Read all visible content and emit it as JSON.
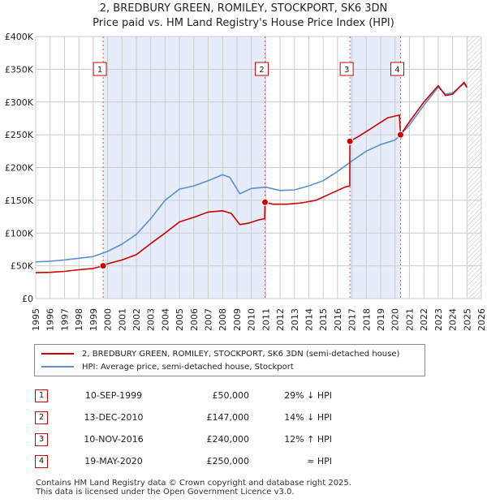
{
  "title_line1": "2, BREDBURY GREEN, ROMILEY, STOCKPORT, SK6 3DN",
  "title_line2": "Price paid vs. HM Land Registry's House Price Index (HPI)",
  "legend": {
    "property": "2, BREDBURY GREEN, ROMILEY, STOCKPORT, SK6 3DN (semi-detached house)",
    "hpi": "HPI: Average price, semi-detached house, Stockport"
  },
  "colors": {
    "property": "#cc0000",
    "hpi": "#5b8fd0",
    "band": "#e6ecfa",
    "grid": "#cccccc",
    "marker_border": "#cc0000"
  },
  "sales": [
    {
      "n": "1",
      "date": "10-SEP-1999",
      "price": "£50,000",
      "hpi": "29% ↓ HPI"
    },
    {
      "n": "2",
      "date": "13-DEC-2010",
      "price": "£147,000",
      "hpi": "14% ↓ HPI"
    },
    {
      "n": "3",
      "date": "10-NOV-2016",
      "price": "£240,000",
      "hpi": "12% ↑ HPI"
    },
    {
      "n": "4",
      "date": "19-MAY-2020",
      "price": "£250,000",
      "hpi": "≈ HPI"
    }
  ],
  "footer_line1": "Contains HM Land Registry data © Crown copyright and database right 2025.",
  "footer_line2": "This data is licensed under the Open Government Licence v3.0.",
  "chart_data": {
    "type": "line",
    "title": "2, BREDBURY GREEN, ROMILEY, STOCKPORT, SK6 3DN",
    "subtitle": "Price paid vs. HM Land Registry's House Price Index (HPI)",
    "xlim": [
      1995,
      2026
    ],
    "ylim": [
      0,
      400000
    ],
    "x_ticks": [
      1995,
      1996,
      1997,
      1998,
      1999,
      2000,
      2001,
      2002,
      2003,
      2004,
      2005,
      2006,
      2007,
      2008,
      2009,
      2010,
      2011,
      2012,
      2013,
      2014,
      2015,
      2016,
      2017,
      2018,
      2019,
      2020,
      2021,
      2022,
      2023,
      2024,
      2025,
      2026
    ],
    "y_ticks": [
      {
        "v": 0,
        "label": "£0"
      },
      {
        "v": 50000,
        "label": "£50K"
      },
      {
        "v": 100000,
        "label": "£100K"
      },
      {
        "v": 150000,
        "label": "£150K"
      },
      {
        "v": 200000,
        "label": "£200K"
      },
      {
        "v": 250000,
        "label": "£250K"
      },
      {
        "v": 300000,
        "label": "£300K"
      },
      {
        "v": 350000,
        "label": "£350K"
      },
      {
        "v": 400000,
        "label": "£400K"
      }
    ],
    "grid": true,
    "shaded_ranges": [
      [
        1999.69,
        2010.95
      ],
      [
        2016.86,
        2020.38
      ]
    ],
    "hatched_from": 2025.0,
    "sale_markers": [
      {
        "label": "1",
        "x": 1999.69,
        "y": 50000
      },
      {
        "label": "2",
        "x": 2010.95,
        "y": 147000
      },
      {
        "label": "3",
        "x": 2016.86,
        "y": 240000
      },
      {
        "label": "4",
        "x": 2020.38,
        "y": 250000
      }
    ],
    "series": [
      {
        "name": "2, BREDBURY GREEN, ROMILEY, STOCKPORT, SK6 3DN (semi-detached house)",
        "color": "#cc0000",
        "points": [
          [
            1995,
            39500
          ],
          [
            1996,
            40000
          ],
          [
            1997,
            41500
          ],
          [
            1998,
            44000
          ],
          [
            1999,
            46000
          ],
          [
            1999.69,
            50000
          ],
          [
            2000,
            53000
          ],
          [
            2001,
            59000
          ],
          [
            2002,
            67000
          ],
          [
            2003,
            84000
          ],
          [
            2004,
            100000
          ],
          [
            2005,
            117000
          ],
          [
            2006,
            124000
          ],
          [
            2007,
            132000
          ],
          [
            2008,
            134000
          ],
          [
            2008.6,
            130000
          ],
          [
            2009.2,
            113000
          ],
          [
            2009.8,
            115000
          ],
          [
            2010.5,
            120000
          ],
          [
            2010.93,
            122000
          ],
          [
            2010.95,
            147000
          ],
          [
            2011.5,
            144000
          ],
          [
            2012.5,
            144000
          ],
          [
            2013.5,
            146000
          ],
          [
            2014.5,
            150000
          ],
          [
            2015.5,
            160000
          ],
          [
            2016.5,
            170000
          ],
          [
            2016.85,
            172000
          ],
          [
            2016.86,
            240000
          ],
          [
            2017.5,
            248000
          ],
          [
            2018.5,
            262000
          ],
          [
            2019.5,
            276000
          ],
          [
            2020.3,
            280000
          ],
          [
            2020.38,
            250000
          ],
          [
            2021,
            270000
          ],
          [
            2022,
            300000
          ],
          [
            2023,
            325000
          ],
          [
            2023.5,
            310000
          ],
          [
            2024,
            312000
          ],
          [
            2024.8,
            330000
          ],
          [
            2025.0,
            323000
          ]
        ]
      },
      {
        "name": "HPI: Average price, semi-detached house, Stockport",
        "color": "#5b8fd0",
        "points": [
          [
            1995,
            56000
          ],
          [
            1996,
            57000
          ],
          [
            1997,
            59000
          ],
          [
            1998,
            61500
          ],
          [
            1999,
            64000
          ],
          [
            2000,
            72000
          ],
          [
            2001,
            83000
          ],
          [
            2002,
            98000
          ],
          [
            2003,
            122000
          ],
          [
            2004,
            150000
          ],
          [
            2005,
            167000
          ],
          [
            2006,
            172000
          ],
          [
            2007,
            180000
          ],
          [
            2008,
            189000
          ],
          [
            2008.5,
            185000
          ],
          [
            2009.2,
            160000
          ],
          [
            2010,
            168000
          ],
          [
            2011,
            170000
          ],
          [
            2012,
            165000
          ],
          [
            2013,
            166000
          ],
          [
            2014,
            172000
          ],
          [
            2015,
            180000
          ],
          [
            2016,
            194000
          ],
          [
            2017,
            210000
          ],
          [
            2018,
            225000
          ],
          [
            2019,
            235000
          ],
          [
            2020,
            242000
          ],
          [
            2020.38,
            250000
          ],
          [
            2021,
            265000
          ],
          [
            2022,
            295000
          ],
          [
            2023,
            323000
          ],
          [
            2023.5,
            312000
          ],
          [
            2024,
            314000
          ],
          [
            2024.8,
            328000
          ],
          [
            2025.0,
            322000
          ]
        ]
      }
    ]
  }
}
